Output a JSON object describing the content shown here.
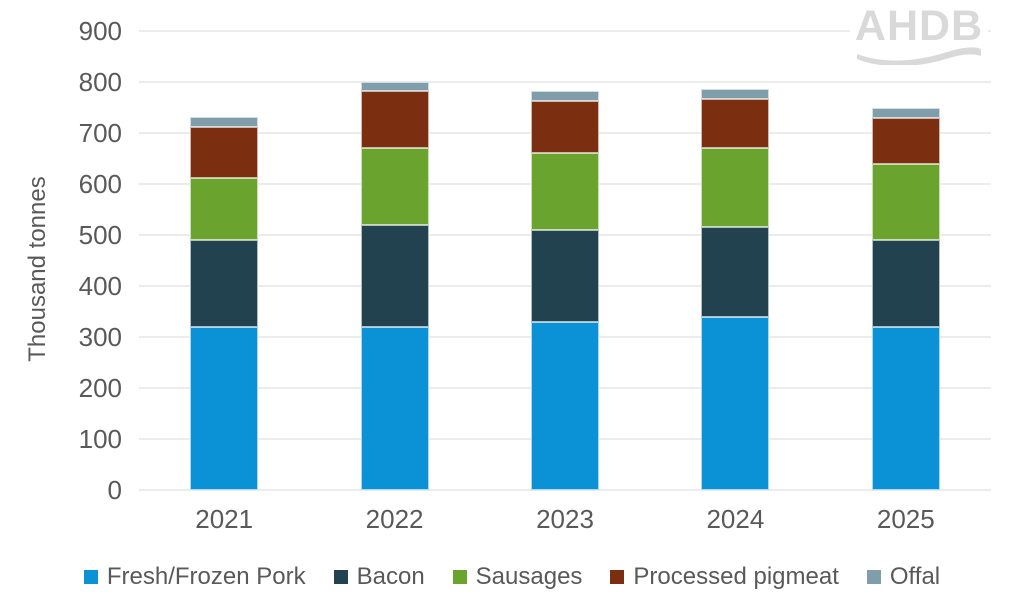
{
  "watermark": "AHDB",
  "colors": {
    "text": "#595959",
    "gridline": "#ececec",
    "watermark": "#d9d9d9",
    "background": "#ffffff"
  },
  "chart_data": {
    "type": "bar",
    "stacked": true,
    "title": "",
    "xlabel": "",
    "ylabel": "Thousand tonnes",
    "ylim": [
      0,
      900
    ],
    "yticks": [
      0,
      100,
      200,
      300,
      400,
      500,
      600,
      700,
      800,
      900
    ],
    "grid": true,
    "legend_position": "bottom",
    "categories": [
      "2021",
      "2022",
      "2023",
      "2024",
      "2025"
    ],
    "series": [
      {
        "name": "Fresh/Frozen Pork",
        "color": "#0a91d6",
        "values": [
          320,
          320,
          330,
          340,
          320
        ]
      },
      {
        "name": "Bacon",
        "color": "#22424f",
        "values": [
          170,
          200,
          180,
          175,
          170
        ]
      },
      {
        "name": "Sausages",
        "color": "#6aa32e",
        "values": [
          122,
          150,
          150,
          155,
          150
        ]
      },
      {
        "name": "Processed pigmeat",
        "color": "#7b2f10",
        "values": [
          100,
          112,
          103,
          96,
          90
        ]
      },
      {
        "name": "Offal",
        "color": "#7f9dab",
        "values": [
          20,
          18,
          19,
          20,
          20
        ]
      }
    ]
  }
}
